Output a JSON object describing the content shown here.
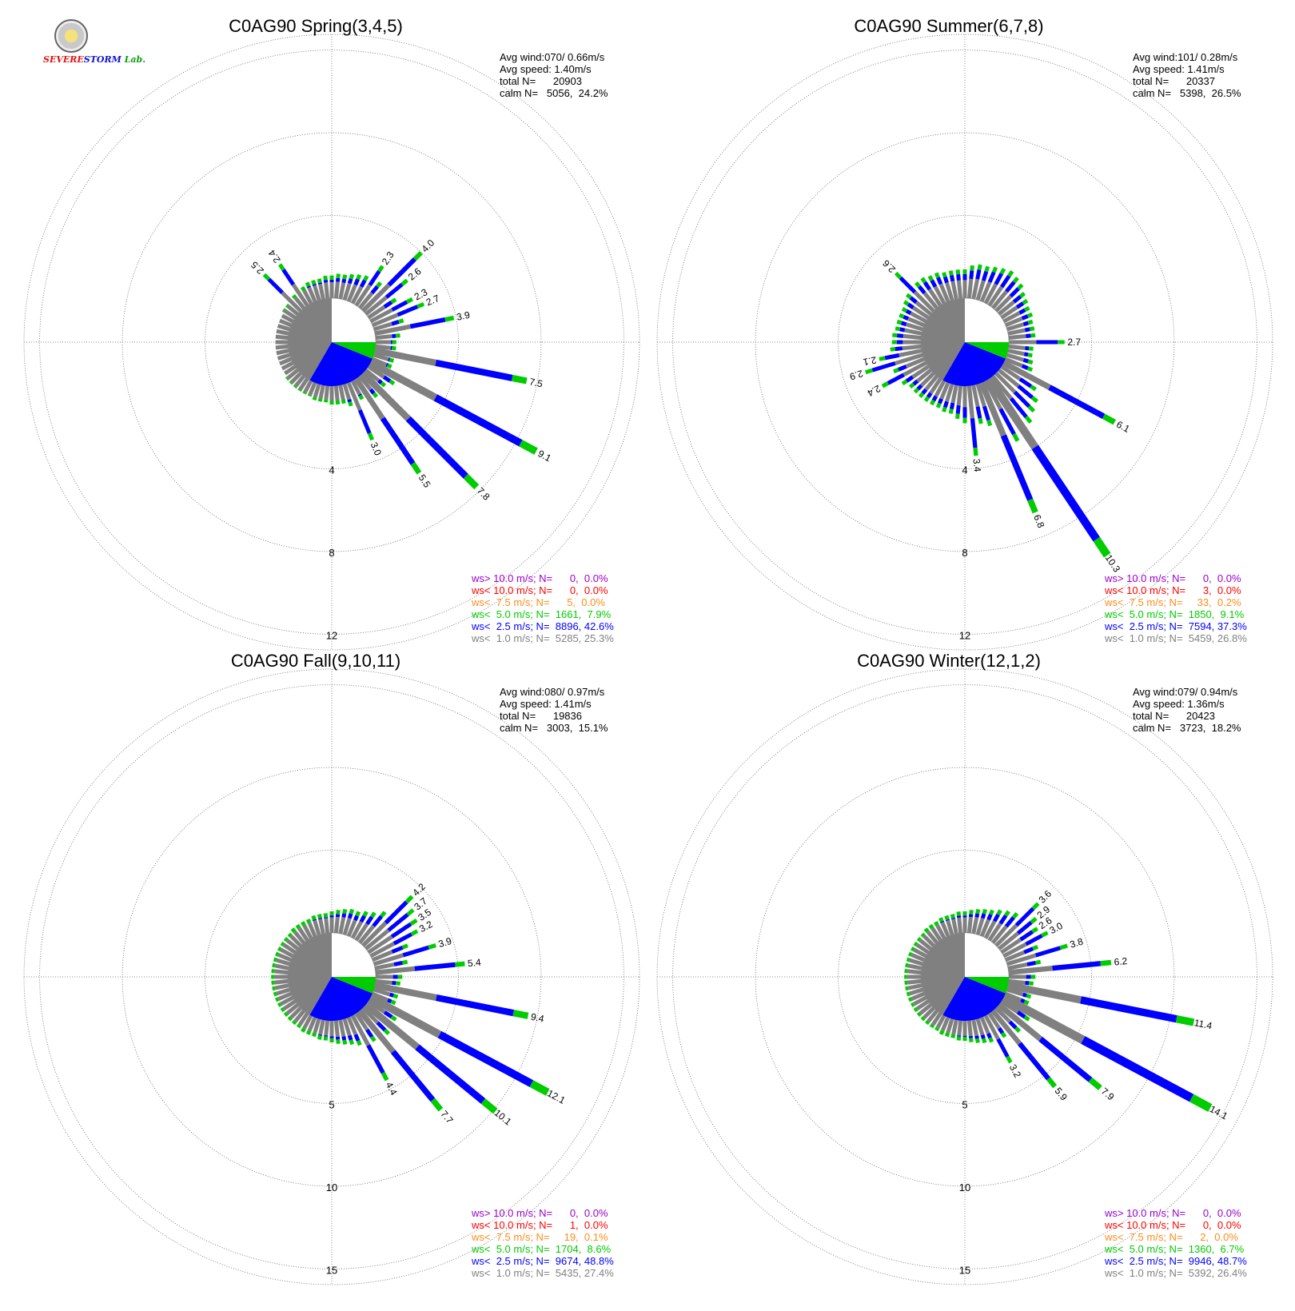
{
  "logo": {
    "text_a": "SEVERE",
    "text_b": "STORM",
    "text_c": "Lab."
  },
  "colors": {
    "gray": "#808080",
    "blue": "#0000ff",
    "green": "#00cc00",
    "orange": "#ff8c1a",
    "red": "#ff0000",
    "purple": "#9900cc",
    "grid": "#666666"
  },
  "chart_data": [
    {
      "type": "wind-rose",
      "title": "C0AG90 Spring(3,4,5)",
      "summary": [
        "Avg wind:070/ 0.66m/s",
        "Avg speed: 1.40m/s",
        "total N=      20903",
        "calm N=   5056,  24.2%"
      ],
      "ring_labels": [
        "4",
        "8",
        "12"
      ],
      "rmax": 12.4,
      "legend": [
        {
          "text": "ws> 10.0 m/s; N=      0,  0.0%",
          "color": "purple"
        },
        {
          "text": "ws< 10.0 m/s; N=      0,  0.0%",
          "color": "red"
        },
        {
          "text": "ws<  7.5 m/s; N=      5,  0.0%",
          "color": "orange"
        },
        {
          "text": "ws<  5.0 m/s; N=  1661,  7.9%",
          "color": "green"
        },
        {
          "text": "ws<  2.5 m/s; N=  8896, 42.6%",
          "color": "blue"
        },
        {
          "text": "ws<  1.0 m/s; N=  5285, 25.3%",
          "color": "gray"
        }
      ],
      "sector_labels": [
        "",
        "",
        "",
        "",
        "",
        "",
        "2.3",
        "",
        "4.0",
        "2.6",
        "",
        "2.3",
        "2.7",
        "",
        "3.9",
        "",
        "",
        "",
        "7.5",
        "",
        "",
        "9.1",
        "",
        "",
        "7.8",
        "",
        "5.5",
        "",
        "3.0",
        "",
        "",
        "",
        "",
        "",
        "",
        "",
        "",
        "",
        "",
        "",
        "",
        "",
        "",
        "",
        "",
        "",
        "",
        "",
        "",
        "",
        "",
        "",
        "",
        "",
        "",
        "",
        "2.5",
        "",
        "2.4",
        "",
        "",
        "",
        "",
        ""
      ],
      "sector_values": [
        1.1,
        1.2,
        1.2,
        1.3,
        1.4,
        1.5,
        2.3,
        1.6,
        4.0,
        2.6,
        1.6,
        2.3,
        2.7,
        1.5,
        3.9,
        1.2,
        1.0,
        1.0,
        7.5,
        1.0,
        1.0,
        9.1,
        1.5,
        1.2,
        7.8,
        1.3,
        5.5,
        1.0,
        3.0,
        1.1,
        0.9,
        0.9,
        0.9,
        0.8,
        0.8,
        0.8,
        0.7,
        0.7,
        0.7,
        0.7,
        0.7,
        0.7,
        0.6,
        0.6,
        0.6,
        0.6,
        0.6,
        0.6,
        0.6,
        0.6,
        0.6,
        0.6,
        0.6,
        0.6,
        0.7,
        0.7,
        2.5,
        0.8,
        2.4,
        0.9,
        1.0,
        1.0,
        1.0,
        1.1
      ]
    },
    {
      "type": "wind-rose",
      "title": "C0AG90 Summer(6,7,8)",
      "summary": [
        "Avg wind:101/ 0.28m/s",
        "Avg speed: 1.41m/s",
        "total N=      20337",
        "calm N=   5398,  26.5%"
      ],
      "ring_labels": [
        "4",
        "8",
        "12"
      ],
      "rmax": 12.4,
      "legend": [
        {
          "text": "ws> 10.0 m/s; N=      0,  0.0%",
          "color": "purple"
        },
        {
          "text": "ws< 10.0 m/s; N=      3,  0.0%",
          "color": "red"
        },
        {
          "text": "ws<  7.5 m/s; N=     33,  0.2%",
          "color": "orange"
        },
        {
          "text": "ws<  5.0 m/s; N=  1850,  9.1%",
          "color": "green"
        },
        {
          "text": "ws<  2.5 m/s; N=  7594, 37.3%",
          "color": "blue"
        },
        {
          "text": "ws<  1.0 m/s; N=  5459, 26.8%",
          "color": "gray"
        }
      ],
      "sector_labels": [
        "",
        "",
        "",
        "",
        "",
        "",
        "",
        "",
        "",
        "",
        "",
        "",
        "",
        "",
        "",
        "",
        "2.7",
        "",
        "",
        "",
        "",
        "6.1",
        "",
        "",
        "",
        "",
        "10.3",
        "",
        "6.8",
        "",
        "",
        "3.4",
        "",
        "",
        "",
        "",
        "",
        "",
        "",
        "",
        "",
        "",
        "",
        "2.4",
        "",
        "2.9",
        "2.1",
        "",
        "",
        "",
        "",
        "",
        "",
        "",
        "",
        "",
        "2.6",
        "",
        "",
        "",
        "",
        "",
        "",
        ""
      ],
      "sector_values": [
        1.4,
        1.6,
        1.7,
        1.7,
        1.8,
        1.9,
        2.0,
        1.9,
        1.8,
        1.6,
        1.5,
        1.4,
        1.4,
        1.3,
        1.3,
        1.3,
        2.7,
        1.2,
        1.2,
        1.3,
        1.4,
        6.1,
        2.0,
        2.4,
        2.6,
        2.9,
        10.3,
        3.3,
        6.8,
        2.1,
        1.9,
        3.4,
        1.8,
        1.6,
        1.4,
        1.4,
        1.3,
        1.3,
        1.3,
        1.3,
        1.3,
        1.3,
        1.5,
        2.4,
        1.6,
        2.9,
        2.1,
        1.5,
        1.4,
        1.4,
        1.3,
        1.3,
        1.3,
        1.3,
        1.4,
        1.5,
        2.6,
        1.6,
        1.6,
        1.5,
        1.5,
        1.4,
        1.4,
        1.4
      ]
    },
    {
      "type": "wind-rose",
      "title": "C0AG90 Fall(9,10,11)",
      "summary": [
        "Avg wind:080/ 0.97m/s",
        "Avg speed: 1.41m/s",
        "total N=      19836",
        "calm N=   3003,  15.1%"
      ],
      "ring_labels": [
        "5",
        "10",
        "15"
      ],
      "rmax": 15.4,
      "legend": [
        {
          "text": "ws> 10.0 m/s; N=      0,  0.0%",
          "color": "purple"
        },
        {
          "text": "ws< 10.0 m/s; N=      1,  0.0%",
          "color": "red"
        },
        {
          "text": "ws<  7.5 m/s; N=     19,  0.1%",
          "color": "orange"
        },
        {
          "text": "ws<  5.0 m/s; N=  1704,  8.6%",
          "color": "green"
        },
        {
          "text": "ws<  2.5 m/s; N=  9674, 48.8%",
          "color": "blue"
        },
        {
          "text": "ws<  1.0 m/s; N=  5435, 27.4%",
          "color": "gray"
        }
      ],
      "sector_labels": [
        "",
        "",
        "",
        "",
        "",
        "",
        "",
        "",
        "4.2",
        "3.7",
        "3.5",
        "3.2",
        "",
        "3.9",
        "",
        "5.4",
        "",
        "",
        "9.4",
        "",
        "",
        "12.1",
        "",
        "10.1",
        "",
        "7.7",
        "",
        "4.4",
        "",
        "",
        "",
        "",
        "",
        "",
        "",
        "",
        "",
        "",
        "",
        "",
        "",
        "",
        "",
        "",
        "",
        "",
        "",
        "",
        "",
        "",
        "",
        "",
        "",
        "",
        "",
        "",
        "",
        "",
        "",
        "",
        "",
        "",
        "",
        ""
      ],
      "sector_values": [
        1.3,
        1.4,
        1.5,
        1.6,
        1.6,
        1.8,
        2.0,
        2.4,
        4.2,
        3.7,
        3.5,
        3.2,
        2.3,
        3.9,
        2.0,
        5.4,
        1.6,
        1.5,
        9.4,
        1.5,
        1.5,
        12.1,
        2.0,
        10.1,
        2.2,
        7.7,
        2.0,
        4.4,
        1.8,
        1.6,
        1.5,
        1.4,
        1.3,
        1.2,
        1.2,
        1.1,
        1.1,
        1.1,
        1.0,
        1.0,
        1.0,
        1.0,
        1.0,
        1.0,
        1.0,
        1.0,
        1.0,
        1.0,
        1.0,
        1.0,
        1.0,
        1.0,
        1.0,
        1.0,
        1.0,
        1.0,
        1.0,
        1.1,
        1.1,
        1.1,
        1.1,
        1.2,
        1.2,
        1.2
      ]
    },
    {
      "type": "wind-rose",
      "title": "C0AG90 Winter(12,1,2)",
      "summary": [
        "Avg wind:079/ 0.94m/s",
        "Avg speed: 1.36m/s",
        "total N=      20423",
        "calm N=   3723,  18.2%"
      ],
      "ring_labels": [
        "5",
        "10",
        "15"
      ],
      "rmax": 15.4,
      "legend": [
        {
          "text": "ws> 10.0 m/s; N=      0,  0.0%",
          "color": "purple"
        },
        {
          "text": "ws< 10.0 m/s; N=      0,  0.0%",
          "color": "red"
        },
        {
          "text": "ws<  7.5 m/s; N=      2,  0.0%",
          "color": "orange"
        },
        {
          "text": "ws<  5.0 m/s; N=  1360,  6.7%",
          "color": "green"
        },
        {
          "text": "ws<  2.5 m/s; N=  9946, 48.7%",
          "color": "blue"
        },
        {
          "text": "ws<  1.0 m/s; N=  5392, 26.4%",
          "color": "gray"
        }
      ],
      "sector_labels": [
        "",
        "",
        "",
        "",
        "",
        "",
        "",
        "",
        "3.6",
        "2.9",
        "2.6",
        "3.0",
        "",
        "3.8",
        "",
        "6.2",
        "",
        "",
        "11.4",
        "",
        "",
        "14.1",
        "",
        "7.9",
        "",
        "5.9",
        "",
        "3.2",
        "",
        "",
        "",
        "",
        "",
        "",
        "",
        "",
        "",
        "",
        "",
        "",
        "",
        "",
        "",
        "",
        "",
        "",
        "",
        "",
        "",
        "",
        "",
        "",
        "",
        "",
        "",
        "",
        "",
        "",
        "",
        "",
        "",
        "",
        "",
        ""
      ],
      "sector_values": [
        1.3,
        1.4,
        1.5,
        1.6,
        1.7,
        1.9,
        2.1,
        2.3,
        3.6,
        2.9,
        2.6,
        3.0,
        2.1,
        3.8,
        2.0,
        6.2,
        1.6,
        1.5,
        11.4,
        1.5,
        1.5,
        14.1,
        2.0,
        7.9,
        2.0,
        5.9,
        1.7,
        3.2,
        1.6,
        1.5,
        1.4,
        1.3,
        1.2,
        1.2,
        1.1,
        1.1,
        1.1,
        1.0,
        1.0,
        1.0,
        1.0,
        1.0,
        1.0,
        1.0,
        1.0,
        1.0,
        1.0,
        1.0,
        1.0,
        1.0,
        1.0,
        1.0,
        1.0,
        1.0,
        1.0,
        1.0,
        1.0,
        1.1,
        1.1,
        1.1,
        1.2,
        1.2,
        1.2,
        1.3
      ]
    }
  ]
}
